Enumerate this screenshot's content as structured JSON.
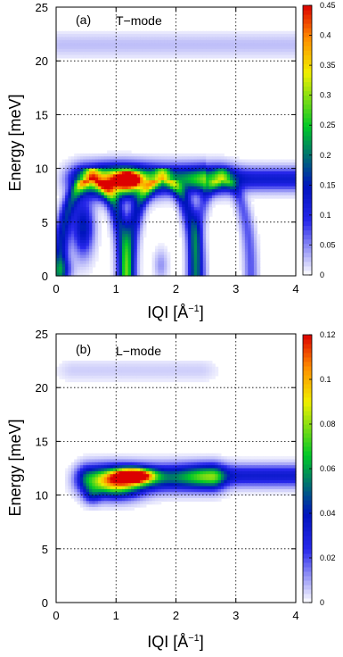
{
  "chart_data": [
    {
      "type": "heatmap",
      "panel_label": "(a)",
      "mode_label": "T−mode",
      "xlabel_main": "IQI [Å",
      "xlabel_sup": "−1",
      "xlabel_close": "]",
      "ylabel": "Energy [meV]",
      "xlim": [
        0,
        4
      ],
      "ylim": [
        0,
        25
      ],
      "xticks": [
        "0",
        "1",
        "2",
        "3",
        "4"
      ],
      "yticks": [
        "0",
        "5",
        "10",
        "15",
        "20",
        "25"
      ],
      "grid": true,
      "colorbar": {
        "min": 0,
        "max": 0.45,
        "ticks": [
          "0",
          "0.05",
          "0.1",
          "0.15",
          "0.2",
          "0.25",
          "0.3",
          "0.35",
          "0.4",
          "0.45"
        ]
      },
      "features": [
        {
          "kind": "flat_band",
          "q_range": [
            0.1,
            4.0
          ],
          "energy": 21.5,
          "intensity": 0.03
        },
        {
          "kind": "peak",
          "q": 1.2,
          "energy": 9.0,
          "intensity": 0.45
        },
        {
          "kind": "dispersion",
          "q_range": [
            0.5,
            2.8
          ],
          "energy": 9.0,
          "intensity": 0.22
        },
        {
          "kind": "flat_band",
          "q_range": [
            2.8,
            4.0
          ],
          "energy": 9.0,
          "intensity": 0.12
        },
        {
          "kind": "arc",
          "q_range": [
            0.0,
            1.1
          ],
          "energy_top": 9.0,
          "intensity": 0.15
        },
        {
          "kind": "arc",
          "q_range": [
            1.2,
            2.3
          ],
          "energy_top": 9.0,
          "intensity": 0.15
        },
        {
          "kind": "arc",
          "q_range": [
            2.3,
            3.2
          ],
          "energy_top": 9.0,
          "intensity": 0.08
        }
      ]
    },
    {
      "type": "heatmap",
      "panel_label": "(b)",
      "mode_label": "L−mode",
      "xlabel_main": "IQI [Å",
      "xlabel_sup": "−1",
      "xlabel_close": "]",
      "ylabel": "Energy [meV]",
      "xlim": [
        0,
        4
      ],
      "ylim": [
        0,
        25
      ],
      "xticks": [
        "0",
        "1",
        "2",
        "3",
        "4"
      ],
      "yticks": [
        "0",
        "5",
        "10",
        "15",
        "20",
        "25"
      ],
      "grid": true,
      "colorbar": {
        "min": 0,
        "max": 0.12,
        "ticks": [
          "0",
          "0.02",
          "0.04",
          "0.06",
          "0.08",
          "0.1",
          "0.12"
        ]
      },
      "features": [
        {
          "kind": "flat_band",
          "q_range": [
            0.3,
            2.5
          ],
          "energy": 21.5,
          "intensity": 0.01
        },
        {
          "kind": "peak",
          "q": 1.3,
          "energy": 11.8,
          "intensity": 0.12
        },
        {
          "kind": "dispersion",
          "q_range": [
            0.45,
            2.6
          ],
          "energy": 11.5,
          "intensity": 0.07
        },
        {
          "kind": "flat_band",
          "q_range": [
            2.6,
            4.0
          ],
          "energy": 11.8,
          "intensity": 0.035
        }
      ]
    }
  ]
}
